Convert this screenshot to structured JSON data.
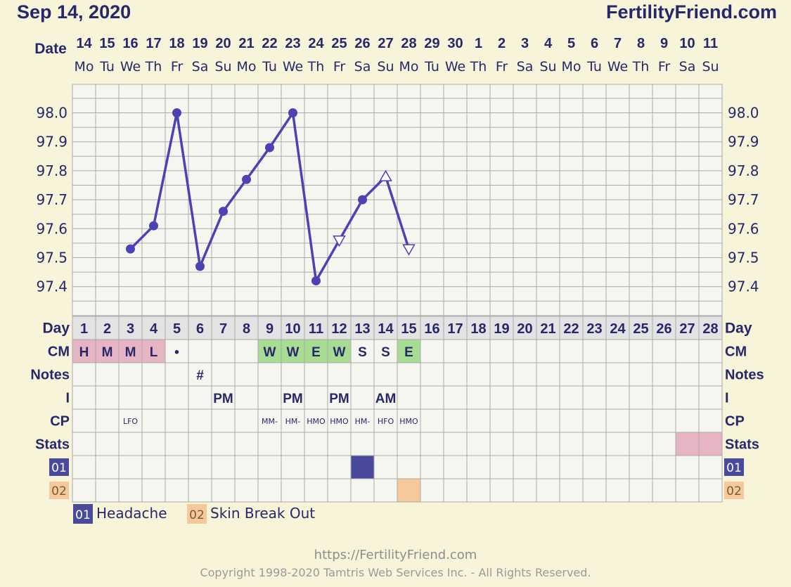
{
  "header": {
    "date": "Sep 14, 2020",
    "site": "FertilityFriend.com"
  },
  "row_labels": {
    "date": "Date",
    "day": "Day",
    "cm": "CM",
    "notes": "Notes",
    "intercourse": "I",
    "cp": "CP",
    "stats": "Stats"
  },
  "dates": [
    "14",
    "15",
    "16",
    "17",
    "18",
    "19",
    "20",
    "21",
    "22",
    "23",
    "24",
    "25",
    "26",
    "27",
    "28",
    "29",
    "30",
    "1",
    "2",
    "3",
    "4",
    "5",
    "6",
    "7",
    "8",
    "9",
    "10",
    "11"
  ],
  "weekdays": [
    "Mo",
    "Tu",
    "We",
    "Th",
    "Fr",
    "Sa",
    "Su",
    "Mo",
    "Tu",
    "We",
    "Th",
    "Fr",
    "Sa",
    "Su",
    "Mo",
    "Tu",
    "We",
    "Th",
    "Fr",
    "Sa",
    "Su",
    "Mo",
    "Tu",
    "We",
    "Th",
    "Fr",
    "Sa",
    "Su"
  ],
  "cycle_days": [
    "1",
    "2",
    "3",
    "4",
    "5",
    "6",
    "7",
    "8",
    "9",
    "10",
    "11",
    "12",
    "13",
    "14",
    "15",
    "16",
    "17",
    "18",
    "19",
    "20",
    "21",
    "22",
    "23",
    "24",
    "25",
    "26",
    "27",
    "28"
  ],
  "cm": [
    "H",
    "M",
    "M",
    "L",
    "•",
    "",
    "",
    "",
    "W",
    "W",
    "E",
    "W",
    "S",
    "S",
    "E",
    "",
    "",
    "",
    "",
    "",
    "",
    "",
    "",
    "",
    "",
    "",
    "",
    ""
  ],
  "notes": [
    "",
    "",
    "",
    "",
    "",
    "#",
    "",
    "",
    "",
    "",
    "",
    "",
    "",
    "",
    "",
    "",
    "",
    "",
    "",
    "",
    "",
    "",
    "",
    "",
    "",
    "",
    "",
    ""
  ],
  "intercourse": [
    "",
    "",
    "",
    "",
    "",
    "",
    "PM",
    "",
    "",
    "PM",
    "",
    "PM",
    "",
    "AM",
    "",
    "",
    "",
    "",
    "",
    "",
    "",
    "",
    "",
    "",
    "",
    "",
    "",
    ""
  ],
  "cp": [
    "",
    "",
    "LFO",
    "",
    "",
    "",
    "",
    "",
    "MM-",
    "HM-",
    "HMO",
    "HMO",
    "HM-",
    "HFO",
    "HMO",
    "",
    "",
    "",
    "",
    "",
    "",
    "",
    "",
    "",
    "",
    "",
    "",
    ""
  ],
  "stats_marked_days": [
    27,
    28
  ],
  "custom_rows": [
    {
      "code": "01",
      "name": "Headache",
      "color": "#4a4a9c",
      "days": [
        13
      ]
    },
    {
      "code": "02",
      "name": "Skin Break Out",
      "color": "#f5c99b",
      "days": [
        15
      ]
    }
  ],
  "colors": {
    "line": "#4d42b3",
    "background": "#f7f4d9",
    "cell": "#f6f6f1",
    "grid": "#a9a9a9",
    "text_dark": "#27276b",
    "cm_pink": "#e7b4c4",
    "cm_green": "#a6dd93",
    "day_row": "#e3e3e3",
    "stats_pink": "#e7b4c4"
  },
  "chart_data": {
    "type": "line",
    "ylabel": "",
    "ylim": [
      97.3,
      98.1
    ],
    "yticks": [
      "98.0",
      "97.9",
      "97.8",
      "97.7",
      "97.6",
      "97.5",
      "97.4"
    ],
    "ytick_values": [
      98.0,
      97.9,
      97.8,
      97.7,
      97.6,
      97.5,
      97.4
    ],
    "x": [
      "14",
      "15",
      "16",
      "17",
      "18",
      "19",
      "20",
      "21",
      "22",
      "23",
      "24",
      "25",
      "26",
      "27",
      "28",
      "29",
      "30",
      "1",
      "2",
      "3",
      "4",
      "5",
      "6",
      "7",
      "8",
      "9",
      "10",
      "11"
    ],
    "series": [
      {
        "values": [
          null,
          null,
          97.53,
          97.61,
          98.0,
          97.47,
          97.66,
          97.77,
          97.88,
          98.0,
          97.42,
          97.56,
          97.7,
          97.78,
          97.53,
          null,
          null,
          null,
          null,
          null,
          null,
          null,
          null,
          null,
          null,
          null,
          null,
          null
        ],
        "markers": [
          "",
          "",
          "circle",
          "circle",
          "circle",
          "circle",
          "circle",
          "circle",
          "circle",
          "circle",
          "circle",
          "triangle-down",
          "circle",
          "triangle-up",
          "triangle-down",
          "",
          "",
          "",
          "",
          "",
          "",
          "",
          "",
          "",
          "",
          "",
          "",
          ""
        ]
      }
    ],
    "grid": true
  },
  "footer": {
    "url": "https://FertilityFriend.com",
    "copyright": "Copyright 1998-2020 Tamtris Web Services Inc. - All Rights Reserved."
  }
}
